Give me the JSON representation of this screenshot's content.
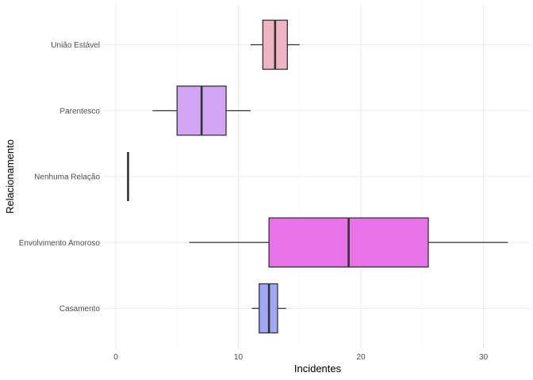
{
  "chart_data": {
    "type": "boxplot",
    "orientation": "horizontal",
    "xlabel": "Incidentes",
    "ylabel": "Relacionamento",
    "xlim": [
      -0.5,
      33.5
    ],
    "x_ticks": [
      0,
      10,
      20,
      30
    ],
    "grid": true,
    "categories": [
      "Casamento",
      "Envolvimento Amoroso",
      "Nenhuma Relação",
      "Parentesco",
      "União Estável"
    ],
    "boxes": [
      {
        "category": "Casamento",
        "whisker_low": 11.1,
        "q1": 11.7,
        "median": 12.5,
        "q3": 13.2,
        "whisker_high": 13.9,
        "color": "#a0a8f5"
      },
      {
        "category": "Envolvimento Amoroso",
        "whisker_low": 6,
        "q1": 12.5,
        "median": 19,
        "q3": 25.5,
        "whisker_high": 32,
        "color": "#e872e8"
      },
      {
        "category": "Nenhuma Relação",
        "whisker_low": 1,
        "q1": 1,
        "median": 1,
        "q3": 1,
        "whisker_high": 1,
        "color": "#a3b81e"
      },
      {
        "category": "Parentesco",
        "whisker_low": 3,
        "q1": 5,
        "median": 7,
        "q3": 9,
        "whisker_high": 11,
        "color": "#d3a6f5"
      },
      {
        "category": "União Estável",
        "whisker_low": 11,
        "q1": 12,
        "median": 13,
        "q3": 14,
        "whisker_high": 15,
        "color": "#eeb4c4"
      }
    ]
  }
}
